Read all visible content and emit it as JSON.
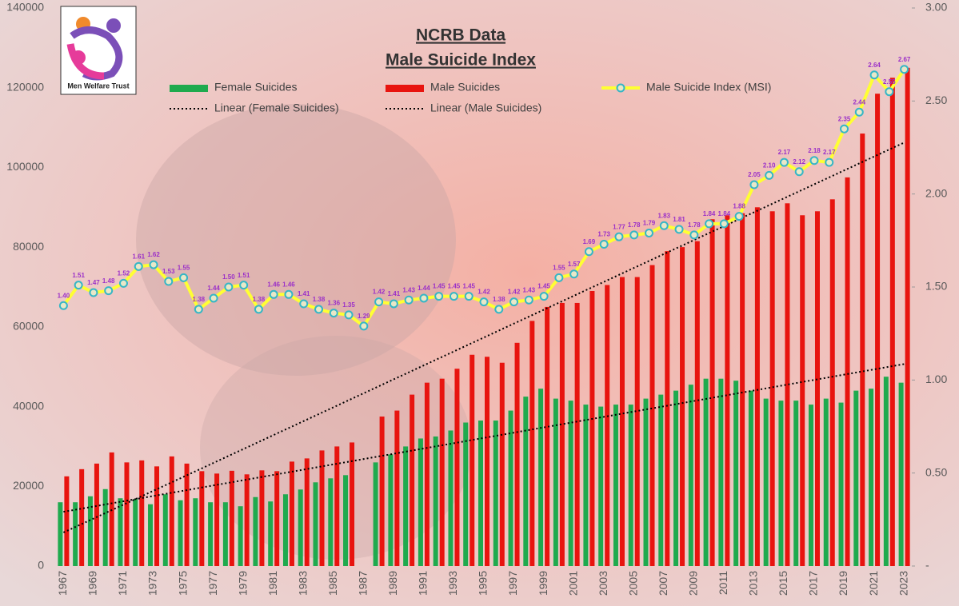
{
  "logo": {
    "text": "Men Welfare Trust"
  },
  "chart_data": {
    "type": "combo",
    "title": "NCRB Data",
    "subtitle": "Male Suicide Index",
    "categories": [
      "1967",
      null,
      "1969",
      null,
      "1971",
      null,
      "1973",
      null,
      "1975",
      null,
      "1977",
      null,
      "1979",
      null,
      "1981",
      null,
      "1983",
      null,
      "1985",
      null,
      "1987",
      null,
      "1989",
      null,
      "1991",
      null,
      "1993",
      null,
      "1995",
      null,
      "1997",
      null,
      "1999",
      null,
      "2001",
      null,
      "2003",
      null,
      "2005",
      null,
      "2007",
      null,
      "2009",
      null,
      "2011",
      null,
      "2013",
      null,
      "2015",
      null,
      "2017",
      null,
      "2019",
      null,
      "2021",
      null,
      "2023"
    ],
    "series": [
      {
        "name": "Female Suicides",
        "type": "bar",
        "color": "#1faa4e",
        "trendline": "Linear (Female Suicides)",
        "values": [
          16000,
          16000,
          17500,
          19300,
          17000,
          16800,
          15500,
          18000,
          16500,
          17000,
          16000,
          16000,
          15000,
          17300,
          16200,
          18000,
          19200,
          21000,
          22000,
          22800,
          null,
          26000,
          28000,
          30000,
          32000,
          32500,
          34000,
          36000,
          36500,
          36500,
          39000,
          42500,
          44500,
          42000,
          41500,
          40500,
          40000,
          40500,
          40500,
          42000,
          43000,
          44000,
          45500,
          47000,
          47000,
          46500,
          44000,
          42000,
          41500,
          41500,
          40500,
          42000,
          41000,
          44000,
          44500,
          47500,
          46000
        ]
      },
      {
        "name": "Male Suicides",
        "type": "bar",
        "color": "#e8140f",
        "trendline": "Linear (Male Suicides)",
        "values": [
          22500,
          24300,
          25700,
          28500,
          26000,
          26500,
          25000,
          27500,
          25700,
          23800,
          23200,
          23900,
          23000,
          24000,
          23800,
          26200,
          27000,
          29000,
          30000,
          31000,
          null,
          37500,
          39000,
          43000,
          46000,
          47000,
          49500,
          53000,
          52500,
          51000,
          56000,
          61500,
          65000,
          66000,
          66000,
          69000,
          70500,
          72500,
          72500,
          75500,
          79000,
          80000,
          81500,
          87000,
          88000,
          88500,
          90000,
          89000,
          91000,
          88000,
          89000,
          92000,
          97500,
          108500,
          118500,
          122500,
          125000
        ]
      },
      {
        "name": "Male Suicide Index (MSI)",
        "type": "line",
        "axis": "y2",
        "color": "#ffff33",
        "marker_color": "#35b6c6",
        "values": [
          1.4,
          1.51,
          1.47,
          1.48,
          1.52,
          1.61,
          1.62,
          1.53,
          1.55,
          1.38,
          1.44,
          1.5,
          1.51,
          1.38,
          1.46,
          1.46,
          1.41,
          1.38,
          1.36,
          1.35,
          1.29,
          1.42,
          1.41,
          1.43,
          1.44,
          1.45,
          1.45,
          1.45,
          1.42,
          1.38,
          1.42,
          1.43,
          1.45,
          1.55,
          1.57,
          1.69,
          1.73,
          1.77,
          1.78,
          1.79,
          1.83,
          1.81,
          1.78,
          1.84,
          1.84,
          1.88,
          2.05,
          2.1,
          2.17,
          2.12,
          2.18,
          2.17,
          2.35,
          2.44,
          2.64,
          2.55,
          2.67
        ],
        "value_labels": [
          "1.40",
          "1.51",
          "1.47",
          "1.48",
          "1.52",
          "1.61",
          "1.62",
          "1.53",
          "1.55",
          "1.38",
          "1.44",
          "1.50",
          "1.51",
          "1.38",
          "1.46",
          "1.46",
          "1.41",
          "1.38",
          "1.36",
          "1.35",
          "1.29",
          "1.42",
          "1.41",
          "1.43",
          "1.44",
          "1.45",
          "1.45",
          "1.45",
          "1.42",
          "1.38",
          "1.42",
          "1.43",
          "1.45",
          "1.55",
          "1.57",
          "1.69",
          "1.73",
          "1.77",
          "1.78",
          "1.79",
          "1.83",
          "1.81",
          "1.78",
          "1.84",
          "1.84",
          "1.88",
          "2.05",
          "2.10",
          "2.17",
          "2.12",
          "2.18",
          "2.17",
          "2.35",
          "2.44",
          "2.64",
          "2.55",
          "2.67"
        ]
      }
    ],
    "ylim": [
      0,
      140000
    ],
    "yticks": [
      0,
      20000,
      40000,
      60000,
      80000,
      100000,
      120000,
      140000
    ],
    "y2lim": [
      0,
      3
    ],
    "y2ticks": [
      {
        "value": 0,
        "label": "-"
      },
      {
        "value": 0.5,
        "label": "0.50"
      },
      {
        "value": 1,
        "label": "1.00"
      },
      {
        "value": 1.5,
        "label": "1.50"
      },
      {
        "value": 2,
        "label": "2.00"
      },
      {
        "value": 2.5,
        "label": "2.50"
      },
      {
        "value": 3,
        "label": "3.00"
      }
    ],
    "grid": false
  }
}
